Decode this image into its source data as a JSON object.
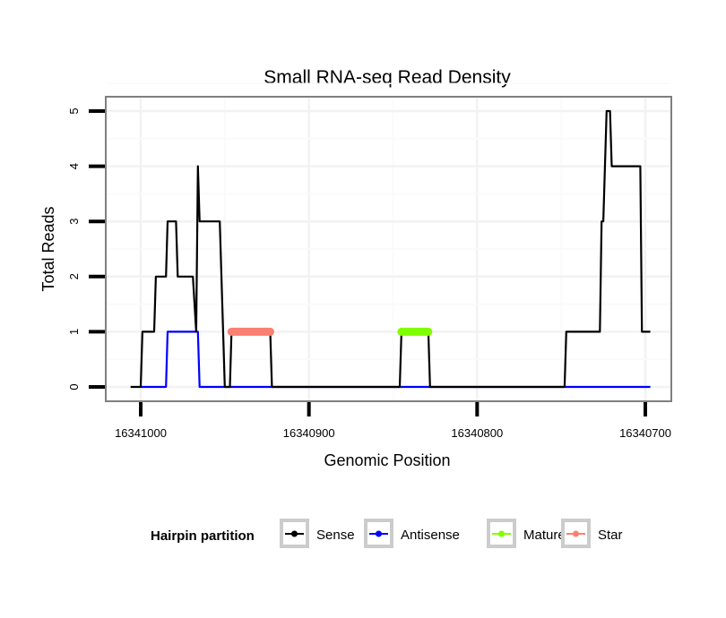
{
  "chart_data": {
    "type": "line",
    "title": "Small RNA-seq Read Density",
    "xlabel": "Genomic Position",
    "ylabel": "Total Reads",
    "xlim": [
      16341006,
      16340694
    ],
    "ylim": [
      -0.25,
      5.2
    ],
    "x_reversed": true,
    "x_ticks": [
      16341000,
      16340900,
      16340800,
      16340700
    ],
    "x_tick_labels": [
      "16341000",
      "16340900",
      "16340800",
      "16340700"
    ],
    "y_ticks": [
      0,
      1,
      2,
      3,
      4,
      5
    ],
    "y_tick_labels": [
      "0",
      "1",
      "2",
      "3",
      "4",
      "5"
    ],
    "grid": true,
    "legend": {
      "title": "Hairpin partition",
      "position": "bottom",
      "entries": [
        {
          "name": "Sense",
          "color": "#000000"
        },
        {
          "name": "Antisense",
          "color": "#0000ff"
        },
        {
          "name": "Mature",
          "color": "#7fff00"
        },
        {
          "name": "Star",
          "color": "#fa8072"
        }
      ]
    },
    "series": [
      {
        "name": "Sense",
        "color": "#000000",
        "points": [
          [
            16341006,
            0
          ],
          [
            16341000,
            0
          ],
          [
            16340999,
            1
          ],
          [
            16340992,
            1
          ],
          [
            16340991,
            2
          ],
          [
            16340985,
            2
          ],
          [
            16340984,
            3
          ],
          [
            16340979,
            3
          ],
          [
            16340978,
            2
          ],
          [
            16340969,
            2
          ],
          [
            16340967,
            1
          ],
          [
            16340966,
            4
          ],
          [
            16340965,
            3
          ],
          [
            16340953,
            3
          ],
          [
            16340950,
            0
          ],
          [
            16340947,
            0
          ],
          [
            16340946,
            1
          ],
          [
            16340923,
            1
          ],
          [
            16340922,
            0
          ],
          [
            16340846,
            0
          ],
          [
            16340845,
            1
          ],
          [
            16340829,
            1
          ],
          [
            16340828,
            0
          ],
          [
            16340748,
            0
          ],
          [
            16340747,
            1
          ],
          [
            16340727,
            1
          ],
          [
            16340726,
            3
          ],
          [
            16340725,
            3
          ],
          [
            16340723,
            5
          ],
          [
            16340721,
            5
          ],
          [
            16340720,
            4
          ],
          [
            16340703,
            4
          ],
          [
            16340702,
            1
          ],
          [
            16340697,
            1
          ]
        ]
      },
      {
        "name": "Antisense",
        "color": "#0000ff",
        "points": [
          [
            16341000,
            0
          ],
          [
            16340985,
            0
          ],
          [
            16340984,
            1
          ],
          [
            16340966,
            1
          ],
          [
            16340965,
            0
          ],
          [
            16340697,
            0
          ]
        ]
      },
      {
        "name": "Mature",
        "color": "#7fff00",
        "points": [
          [
            16340845,
            1
          ],
          [
            16340829,
            1
          ]
        ]
      },
      {
        "name": "Star",
        "color": "#fa8072",
        "points": [
          [
            16340946,
            1
          ],
          [
            16340923,
            1
          ]
        ]
      }
    ]
  }
}
